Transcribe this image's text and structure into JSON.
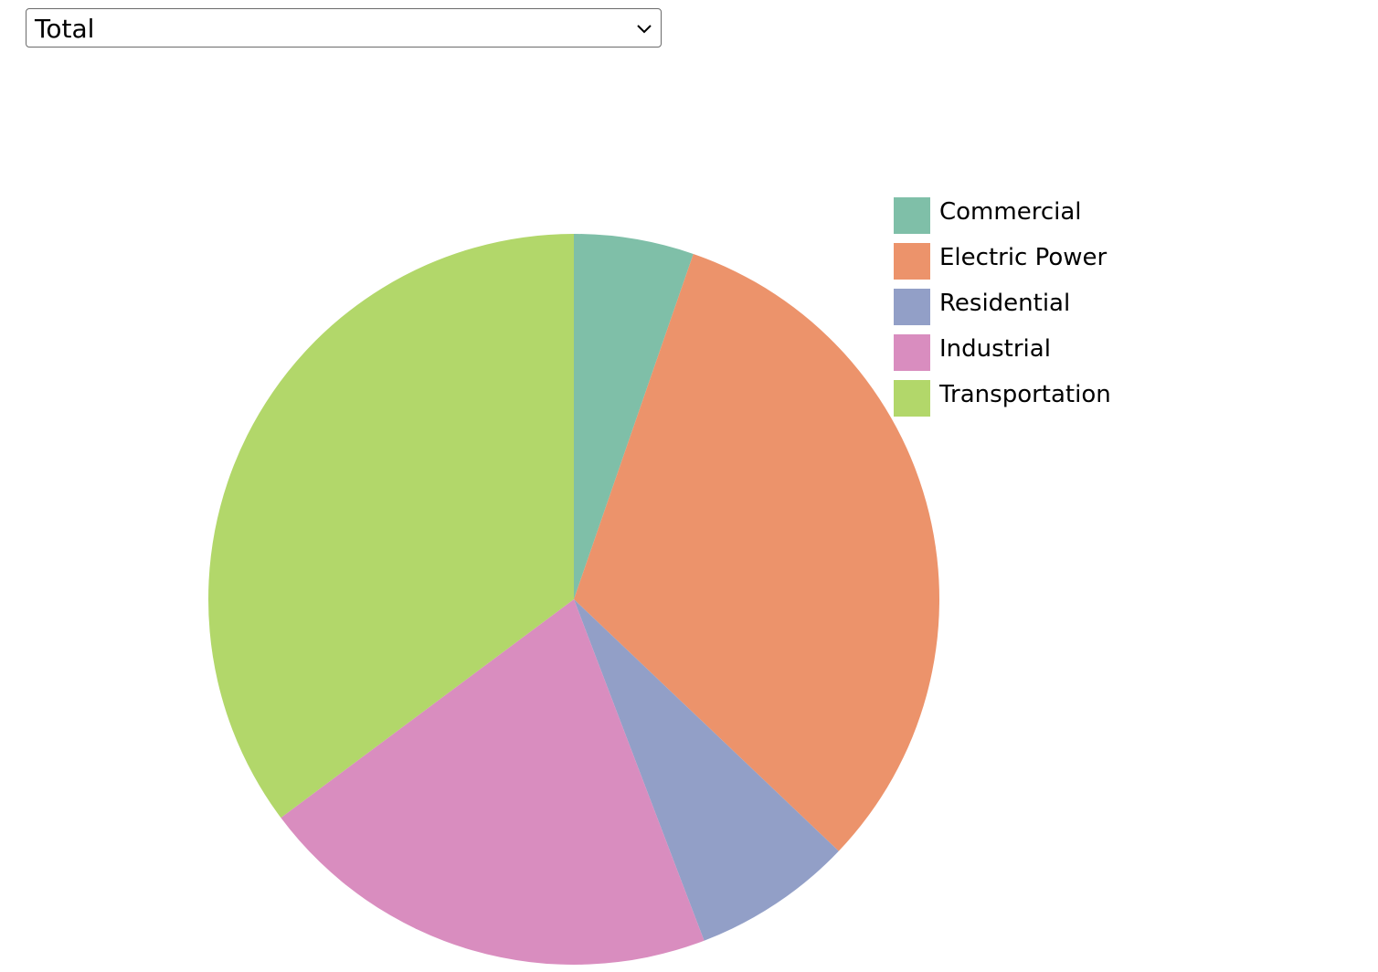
{
  "selector": {
    "selected": "Total"
  },
  "chart_data": {
    "type": "pie",
    "title": "",
    "categories": [
      "Commercial",
      "Electric Power",
      "Residential",
      "Industrial",
      "Transportation"
    ],
    "values": [
      5.3,
      31.8,
      7.1,
      20.6,
      35.2
    ],
    "colors": [
      "#7fbfa8",
      "#ec936b",
      "#929fc7",
      "#d98dbf",
      "#b2d76a"
    ],
    "legend": {
      "items": [
        "Commercial",
        "Electric Power",
        "Residential",
        "Industrial",
        "Transportation"
      ],
      "position": "right"
    }
  }
}
